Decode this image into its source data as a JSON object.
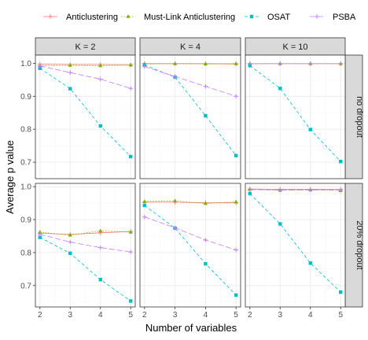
{
  "chart_data": {
    "type": "line",
    "title": "",
    "xlabel": "Number of variables",
    "ylabel": "Average p value",
    "x": [
      2,
      3,
      4,
      5
    ],
    "x_ticks": [
      "2",
      "3",
      "4",
      "5"
    ],
    "columns": [
      "K = 2",
      "K = 4",
      "K = 10"
    ],
    "rows": [
      "no dropout",
      "20% dropout"
    ],
    "legend_position": "top",
    "series_styles": [
      {
        "name": "Anticlustering",
        "color": "#F8766D",
        "marker": "plus",
        "dash": "none"
      },
      {
        "name": "Must-Link Anticlustering",
        "color": "#7CAE00",
        "marker": "triangle",
        "dash": "dotted"
      },
      {
        "name": "OSAT",
        "color": "#00BFC4",
        "marker": "square",
        "dash": "dashed"
      },
      {
        "name": "PSBA",
        "color": "#C77CFF",
        "marker": "plus",
        "dash": "longdash"
      }
    ],
    "panels": [
      {
        "row": "no dropout",
        "col": "K = 2",
        "ylim": [
          0.65,
          1.025
        ],
        "yticks": [
          "0.7",
          "0.8",
          "0.9",
          "1.0"
        ],
        "ytick_values": [
          0.7,
          0.8,
          0.9,
          1.0
        ],
        "series": [
          {
            "name": "Anticlustering",
            "values": [
              0.997,
              0.996,
              0.996,
              0.995
            ]
          },
          {
            "name": "Must-Link Anticlustering",
            "values": [
              0.993,
              0.994,
              0.993,
              0.995
            ]
          },
          {
            "name": "OSAT",
            "values": [
              0.985,
              0.923,
              0.81,
              0.717
            ]
          },
          {
            "name": "PSBA",
            "values": [
              0.992,
              0.972,
              0.952,
              0.924
            ]
          }
        ]
      },
      {
        "row": "no dropout",
        "col": "K = 4",
        "ylim": [
          0.65,
          1.025
        ],
        "yticks": [
          "0.7",
          "0.8",
          "0.9",
          "1.0"
        ],
        "ytick_values": [
          0.7,
          0.8,
          0.9,
          1.0
        ],
        "series": [
          {
            "name": "Anticlustering",
            "values": [
              0.999,
              0.999,
              0.999,
              0.998
            ]
          },
          {
            "name": "Must-Link Anticlustering",
            "values": [
              0.998,
              0.999,
              0.998,
              0.999
            ]
          },
          {
            "name": "OSAT",
            "values": [
              0.995,
              0.958,
              0.841,
              0.72
            ]
          },
          {
            "name": "PSBA",
            "values": [
              0.99,
              0.96,
              0.93,
              0.9
            ]
          }
        ]
      },
      {
        "row": "no dropout",
        "col": "K = 10",
        "ylim": [
          0.65,
          1.025
        ],
        "yticks": [
          "0.7",
          "0.8",
          "0.9",
          "1.0"
        ],
        "ytick_values": [
          0.7,
          0.8,
          0.9,
          1.0
        ],
        "series": [
          {
            "name": "Anticlustering",
            "values": [
              0.999,
              0.999,
              0.999,
              0.999
            ]
          },
          {
            "name": "Must-Link Anticlustering",
            "values": [
              0.999,
              0.999,
              0.999,
              0.999
            ]
          },
          {
            "name": "OSAT",
            "values": [
              0.993,
              0.924,
              0.799,
              0.702
            ]
          },
          {
            "name": "PSBA",
            "values": [
              0.999,
              0.999,
              0.999,
              0.999
            ]
          }
        ]
      },
      {
        "row": "20% dropout",
        "col": "K = 2",
        "ylim": [
          0.635,
          1.01
        ],
        "yticks": [
          "0.7",
          "0.8",
          "0.9",
          "1.0"
        ],
        "ytick_values": [
          0.7,
          0.8,
          0.9,
          1.0
        ],
        "series": [
          {
            "name": "Anticlustering",
            "values": [
              0.859,
              0.855,
              0.86,
              0.864
            ]
          },
          {
            "name": "Must-Link Anticlustering",
            "values": [
              0.862,
              0.853,
              0.866,
              0.862
            ]
          },
          {
            "name": "OSAT",
            "values": [
              0.846,
              0.798,
              0.718,
              0.653
            ]
          },
          {
            "name": "PSBA",
            "values": [
              0.855,
              0.832,
              0.815,
              0.802
            ]
          }
        ]
      },
      {
        "row": "20% dropout",
        "col": "K = 4",
        "ylim": [
          0.635,
          1.01
        ],
        "yticks": [
          "0.7",
          "0.8",
          "0.9",
          "1.0"
        ],
        "ytick_values": [
          0.7,
          0.8,
          0.9,
          1.0
        ],
        "series": [
          {
            "name": "Anticlustering",
            "values": [
              0.953,
              0.953,
              0.951,
              0.951
            ]
          },
          {
            "name": "Must-Link Anticlustering",
            "values": [
              0.955,
              0.957,
              0.949,
              0.954
            ]
          },
          {
            "name": "OSAT",
            "values": [
              0.943,
              0.874,
              0.766,
              0.671
            ]
          },
          {
            "name": "PSBA",
            "values": [
              0.908,
              0.875,
              0.838,
              0.808
            ]
          }
        ]
      },
      {
        "row": "20% dropout",
        "col": "K = 10",
        "ylim": [
          0.635,
          1.01
        ],
        "yticks": [
          "0.7",
          "0.8",
          "0.9",
          "1.0"
        ],
        "ytick_values": [
          0.7,
          0.8,
          0.9,
          1.0
        ],
        "series": [
          {
            "name": "Anticlustering",
            "values": [
              0.993,
              0.992,
              0.992,
              0.992
            ]
          },
          {
            "name": "Must-Link Anticlustering",
            "values": [
              0.992,
              0.989,
              0.99,
              0.988
            ]
          },
          {
            "name": "OSAT",
            "values": [
              0.979,
              0.887,
              0.768,
              0.68
            ]
          },
          {
            "name": "PSBA",
            "values": [
              0.991,
              0.99,
              0.99,
              0.989
            ]
          }
        ]
      }
    ]
  }
}
